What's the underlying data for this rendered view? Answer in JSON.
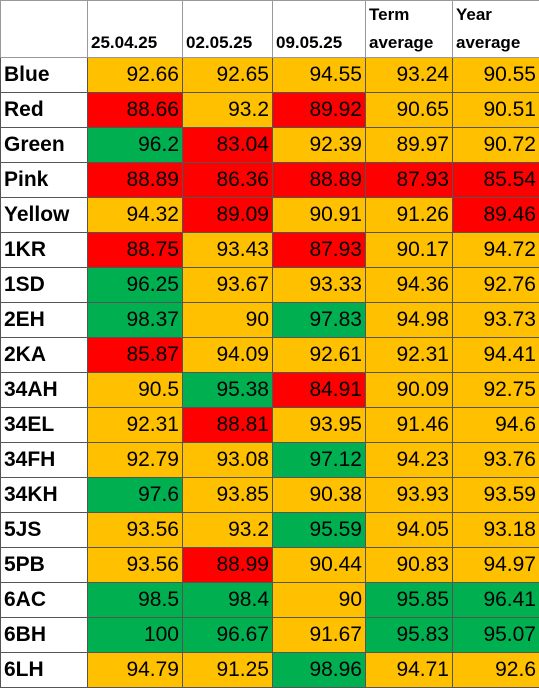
{
  "header": {
    "corner": "",
    "columns": [
      "25.04.25",
      "02.05.25",
      "09.05.25",
      "Term average",
      "Year average"
    ]
  },
  "palette": {
    "amber": "#FFC000",
    "red": "#FF0000",
    "green": "#00B050"
  },
  "rows": [
    {
      "label": "Blue",
      "values": [
        "92.66",
        "92.65",
        "94.55",
        "93.24",
        "90.55"
      ],
      "colors": [
        "amber",
        "amber",
        "amber",
        "amber",
        "amber"
      ]
    },
    {
      "label": "Red",
      "values": [
        "88.66",
        "93.2",
        "89.92",
        "90.65",
        "90.51"
      ],
      "colors": [
        "red",
        "amber",
        "red",
        "amber",
        "amber"
      ]
    },
    {
      "label": "Green",
      "values": [
        "96.2",
        "83.04",
        "92.39",
        "89.97",
        "90.72"
      ],
      "colors": [
        "green",
        "red",
        "amber",
        "amber",
        "amber"
      ]
    },
    {
      "label": "Pink",
      "values": [
        "88.89",
        "86.36",
        "88.89",
        "87.93",
        "85.54"
      ],
      "colors": [
        "red",
        "red",
        "red",
        "red",
        "red"
      ]
    },
    {
      "label": "Yellow",
      "values": [
        "94.32",
        "89.09",
        "90.91",
        "91.26",
        "89.46"
      ],
      "colors": [
        "amber",
        "red",
        "amber",
        "amber",
        "red"
      ]
    },
    {
      "label": "1KR",
      "values": [
        "88.75",
        "93.43",
        "87.93",
        "90.17",
        "94.72"
      ],
      "colors": [
        "red",
        "amber",
        "red",
        "amber",
        "amber"
      ]
    },
    {
      "label": "1SD",
      "values": [
        "96.25",
        "93.67",
        "93.33",
        "94.36",
        "92.76"
      ],
      "colors": [
        "green",
        "amber",
        "amber",
        "amber",
        "amber"
      ]
    },
    {
      "label": "2EH",
      "values": [
        "98.37",
        "90",
        "97.83",
        "94.98",
        "93.73"
      ],
      "colors": [
        "green",
        "amber",
        "green",
        "amber",
        "amber"
      ]
    },
    {
      "label": "2KA",
      "values": [
        "85.87",
        "94.09",
        "92.61",
        "92.31",
        "94.41"
      ],
      "colors": [
        "red",
        "amber",
        "amber",
        "amber",
        "amber"
      ]
    },
    {
      "label": "34AH",
      "values": [
        "90.5",
        "95.38",
        "84.91",
        "90.09",
        "92.75"
      ],
      "colors": [
        "amber",
        "green",
        "red",
        "amber",
        "amber"
      ]
    },
    {
      "label": "34EL",
      "values": [
        "92.31",
        "88.81",
        "93.95",
        "91.46",
        "94.6"
      ],
      "colors": [
        "amber",
        "red",
        "amber",
        "amber",
        "amber"
      ]
    },
    {
      "label": "34FH",
      "values": [
        "92.79",
        "93.08",
        "97.12",
        "94.23",
        "93.76"
      ],
      "colors": [
        "amber",
        "amber",
        "green",
        "amber",
        "amber"
      ]
    },
    {
      "label": "34KH",
      "values": [
        "97.6",
        "93.85",
        "90.38",
        "93.93",
        "93.59"
      ],
      "colors": [
        "green",
        "amber",
        "amber",
        "amber",
        "amber"
      ]
    },
    {
      "label": "5JS",
      "values": [
        "93.56",
        "93.2",
        "95.59",
        "94.05",
        "93.18"
      ],
      "colors": [
        "amber",
        "amber",
        "green",
        "amber",
        "amber"
      ]
    },
    {
      "label": "5PB",
      "values": [
        "93.56",
        "88.99",
        "90.44",
        "90.83",
        "94.97"
      ],
      "colors": [
        "amber",
        "red",
        "amber",
        "amber",
        "amber"
      ]
    },
    {
      "label": "6AC",
      "values": [
        "98.5",
        "98.4",
        "90",
        "95.85",
        "96.41"
      ],
      "colors": [
        "green",
        "green",
        "amber",
        "green",
        "green"
      ]
    },
    {
      "label": "6BH",
      "values": [
        "100",
        "96.67",
        "91.67",
        "95.83",
        "95.07"
      ],
      "colors": [
        "green",
        "green",
        "amber",
        "green",
        "green"
      ]
    },
    {
      "label": "6LH",
      "values": [
        "94.79",
        "91.25",
        "98.96",
        "94.71",
        "92.6"
      ],
      "colors": [
        "amber",
        "amber",
        "green",
        "amber",
        "amber"
      ]
    }
  ]
}
